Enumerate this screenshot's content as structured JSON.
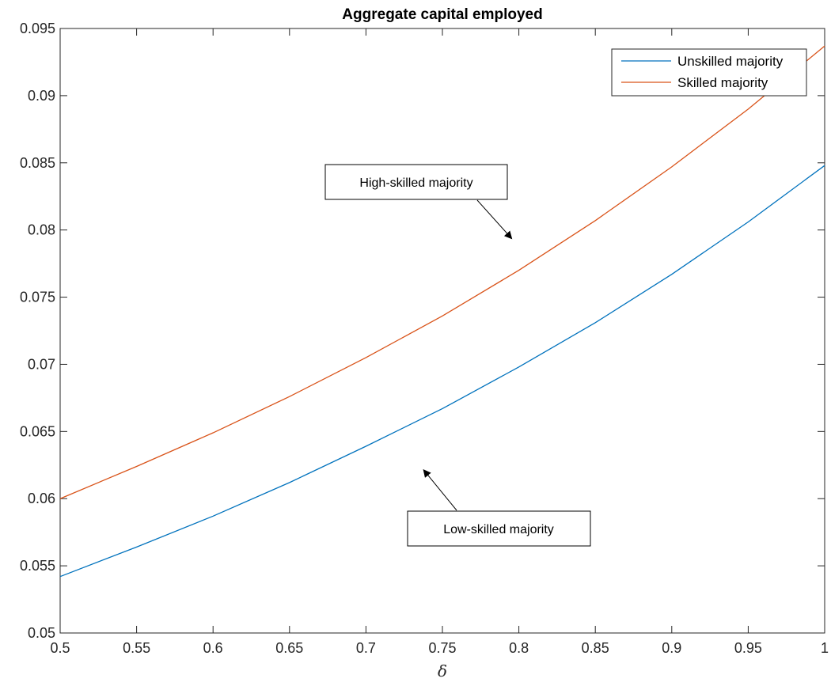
{
  "chart_data": {
    "type": "line",
    "title": "Aggregate capital employed",
    "xlabel": "δ",
    "ylabel": "",
    "xlim": [
      0.5,
      1
    ],
    "ylim": [
      0.05,
      0.095
    ],
    "x_ticks": [
      "0.5",
      "0.55",
      "0.6",
      "0.65",
      "0.7",
      "0.75",
      "0.8",
      "0.85",
      "0.9",
      "0.95",
      "1"
    ],
    "y_ticks": [
      "0.05",
      "0.055",
      "0.06",
      "0.065",
      "0.07",
      "0.075",
      "0.08",
      "0.085",
      "0.09",
      "0.095"
    ],
    "x": [
      0.5,
      0.55,
      0.6,
      0.65,
      0.7,
      0.75,
      0.8,
      0.85,
      0.9,
      0.95,
      1.0
    ],
    "series": [
      {
        "name": "Unskilled majority",
        "color": "#0072BD",
        "values": [
          0.0542,
          0.0564,
          0.0587,
          0.0612,
          0.0639,
          0.0667,
          0.0698,
          0.0731,
          0.0767,
          0.0806,
          0.0848
        ]
      },
      {
        "name": "Skilled majority",
        "color": "#D95319",
        "values": [
          0.06,
          0.0624,
          0.0649,
          0.0676,
          0.0705,
          0.0736,
          0.077,
          0.0807,
          0.0847,
          0.089,
          0.0937
        ]
      }
    ],
    "grid": false,
    "legend_position": "top-right",
    "annotations": [
      {
        "text": "High-skilled majority",
        "target_series": "Skilled majority",
        "arrow_to": [
          0.795,
          0.0794
        ]
      },
      {
        "text": "Low-skilled majority",
        "target_series": "Unskilled majority",
        "arrow_to": [
          0.738,
          0.0621
        ]
      }
    ]
  }
}
